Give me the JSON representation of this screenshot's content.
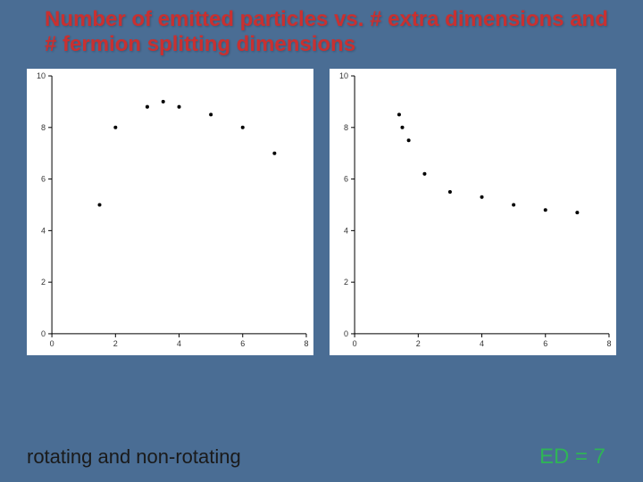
{
  "background_color": "#4a6d94",
  "title": {
    "text": "Number of emitted particles vs. # extra dimensions and # fermion splitting dimensions",
    "color": "#c93030",
    "fontsize": 24
  },
  "footer": {
    "left": {
      "text": "rotating and non-rotating",
      "color": "#1a1a1a"
    },
    "right": {
      "text": "ED = 7",
      "color": "#2fb457"
    }
  },
  "chart_common": {
    "type": "scatter",
    "background_color": "#ffffff",
    "axis_color": "#000000",
    "grid": false,
    "xlim": [
      0,
      8
    ],
    "ylim": [
      0,
      10
    ],
    "xticks": [
      0,
      2,
      4,
      6,
      8
    ],
    "yticks": [
      0,
      2,
      4,
      6,
      8,
      10
    ],
    "tick_fontsize": 9,
    "tick_color": "#333333",
    "marker_color": "#000000",
    "marker_radius": 2.0,
    "aspect_w": 320,
    "aspect_h": 320
  },
  "chart_left": {
    "points": [
      {
        "x": 2.0,
        "y": 8.0
      },
      {
        "x": 3.0,
        "y": 8.8
      },
      {
        "x": 3.5,
        "y": 9.0
      },
      {
        "x": 4.0,
        "y": 8.8
      },
      {
        "x": 5.0,
        "y": 8.5
      },
      {
        "x": 6.0,
        "y": 8.0
      },
      {
        "x": 7.0,
        "y": 7.0
      },
      {
        "x": 1.5,
        "y": 5.0
      }
    ]
  },
  "chart_right": {
    "points": [
      {
        "x": 1.4,
        "y": 8.5
      },
      {
        "x": 1.5,
        "y": 8.0
      },
      {
        "x": 1.7,
        "y": 7.5
      },
      {
        "x": 2.2,
        "y": 6.2
      },
      {
        "x": 3.0,
        "y": 5.5
      },
      {
        "x": 4.0,
        "y": 5.3
      },
      {
        "x": 5.0,
        "y": 5.0
      },
      {
        "x": 6.0,
        "y": 4.8
      },
      {
        "x": 7.0,
        "y": 4.7
      }
    ]
  }
}
